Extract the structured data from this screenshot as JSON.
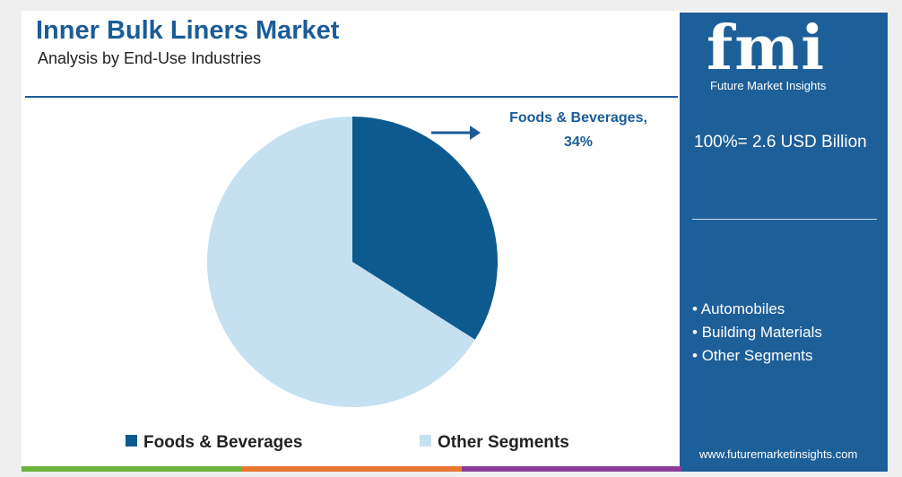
{
  "chart_data": {
    "type": "pie",
    "title": "Inner Bulk Liners Market",
    "subtitle": "Analysis by End-Use Industries",
    "categories": [
      "Foods & Beverages",
      "Other Segments"
    ],
    "values": [
      34,
      66
    ],
    "value_labels": [
      "Foods & Beverages, 34%",
      null
    ],
    "colors": [
      "#0d5a8f",
      "#c5e0f1"
    ],
    "legend": "bottom"
  },
  "panel": {
    "logo": "fmi",
    "brand": "Future Market Insights",
    "total": "100%= 2.6 USD Billion",
    "items": [
      "Automobiles",
      "Building Materials",
      "Other Segments"
    ],
    "website": "www.futuremarketinsights.com"
  }
}
